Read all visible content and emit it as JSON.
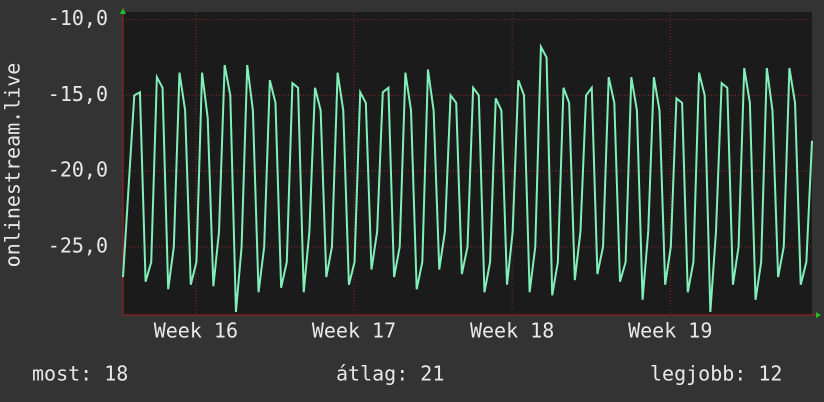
{
  "chart_data": {
    "type": "line",
    "y_label": "onlinestream.live",
    "values": [
      -27,
      -21,
      -15,
      -14.8,
      -27.3,
      -26,
      -13.8,
      -14.5,
      -27.8,
      -25,
      -13.5,
      -16,
      -27.5,
      -26,
      -13.5,
      -16.5,
      -27.6,
      -24,
      -13,
      -15,
      -29.3,
      -25,
      -13,
      -16,
      -28,
      -25,
      -14,
      -15.5,
      -27.7,
      -26,
      -14.2,
      -14.5,
      -28,
      -24,
      -14.5,
      -16,
      -27,
      -25,
      -13.5,
      -16,
      -27.5,
      -26,
      -14.8,
      -15.5,
      -26.5,
      -24,
      -14.8,
      -14.5,
      -27,
      -25,
      -13.5,
      -16,
      -27.8,
      -26,
      -13.3,
      -16,
      -26.5,
      -24,
      -15,
      -15.5,
      -26.8,
      -25,
      -14.5,
      -15,
      -28,
      -26,
      -15.2,
      -16,
      -27.5,
      -24,
      -14,
      -15,
      -28,
      -25,
      -11.8,
      -12.5,
      -28.2,
      -26,
      -14.5,
      -15.5,
      -27.2,
      -24,
      -15,
      -14.5,
      -26.8,
      -25,
      -13.8,
      -15.5,
      -27.3,
      -26,
      -13.8,
      -16,
      -28.5,
      -24,
      -13.8,
      -16,
      -27.5,
      -25,
      -15.2,
      -15.5,
      -28,
      -26,
      -13.5,
      -15,
      -29.3,
      -24,
      -14.2,
      -14.5,
      -27.5,
      -25,
      -13.2,
      -15.5,
      -28.5,
      -26,
      -13.2,
      -16,
      -27,
      -25,
      -13.2,
      -15.5,
      -27.5,
      -26,
      -18
    ],
    "color": "#80f0b8",
    "xlim": [
      0,
      122
    ],
    "xticks": [
      {
        "value": 12.9,
        "label": "Week 16"
      },
      {
        "value": 40.9,
        "label": "Week 17"
      },
      {
        "value": 68.9,
        "label": "Week 18"
      },
      {
        "value": 96.9,
        "label": "Week 19"
      }
    ],
    "ylim": [
      -29.5,
      -9.5
    ],
    "yticks": [
      {
        "value": -25,
        "label": "-25,0"
      },
      {
        "value": -20,
        "label": "-20,0"
      },
      {
        "value": -15,
        "label": "-15,0"
      },
      {
        "value": -10,
        "label": "-10,0"
      }
    ],
    "grid": true,
    "stats": [
      "most: 18",
      "átlag: 21",
      "legjobb: 12"
    ]
  }
}
